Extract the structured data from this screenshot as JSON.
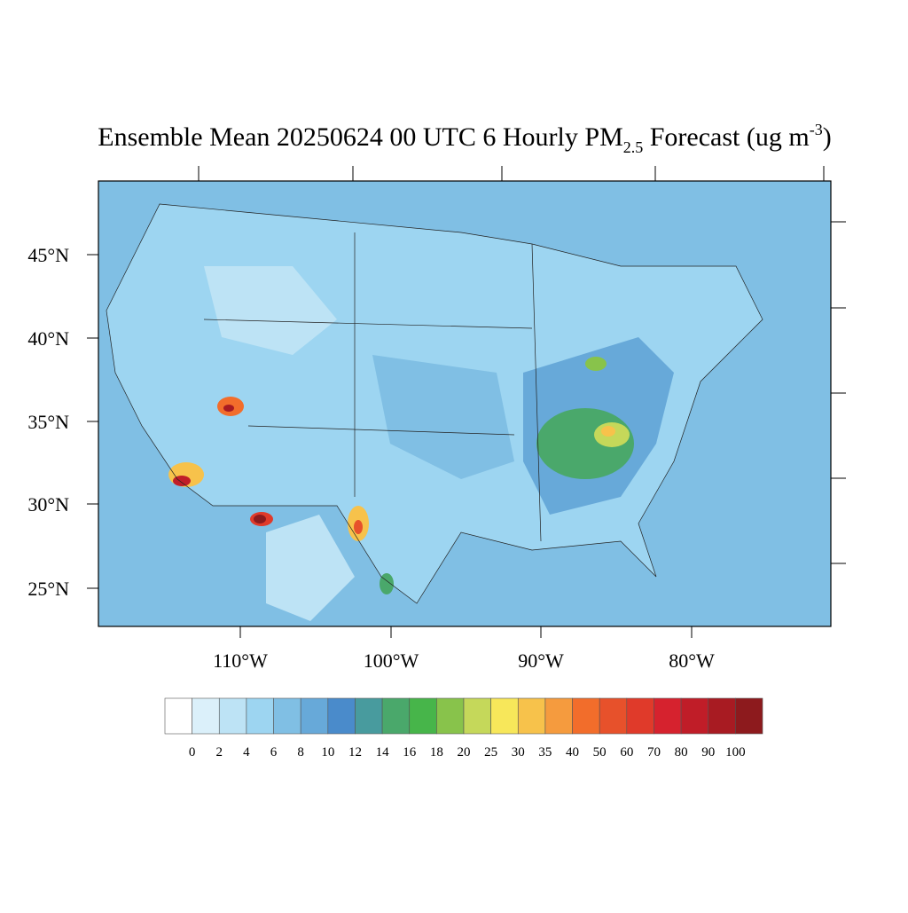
{
  "map": {
    "title": {
      "main": "Ensemble Mean 20250624 00 UTC 6 Hourly PM",
      "subscript": "2.5",
      "after": " Forecast (ug m",
      "superscript": "-3",
      "close": ")"
    },
    "lat_labels": [
      "45°N",
      "40°N",
      "35°N",
      "30°N",
      "25°N"
    ],
    "lon_labels": [
      "110°W",
      "100°W",
      "90°W",
      "80°W"
    ],
    "colorbar": {
      "labels": [
        0,
        2,
        4,
        6,
        8,
        10,
        12,
        14,
        16,
        18,
        20,
        25,
        30,
        35,
        40,
        50,
        60,
        70,
        80,
        90,
        100
      ],
      "colors": [
        "#ffffff",
        "#dbf0fa",
        "#bde3f5",
        "#9dd5f1",
        "#80bfe4",
        "#67a9d9",
        "#4a8bcb",
        "#489b9e",
        "#4aa86b",
        "#47b54a",
        "#88c34b",
        "#c5d85a",
        "#f7e75a",
        "#f7c24b",
        "#f59b3e",
        "#f26d2b",
        "#e7512b",
        "#e03a2a",
        "#d6222e",
        "#c01d28",
        "#a81b22",
        "#8d1a1d"
      ]
    }
  }
}
